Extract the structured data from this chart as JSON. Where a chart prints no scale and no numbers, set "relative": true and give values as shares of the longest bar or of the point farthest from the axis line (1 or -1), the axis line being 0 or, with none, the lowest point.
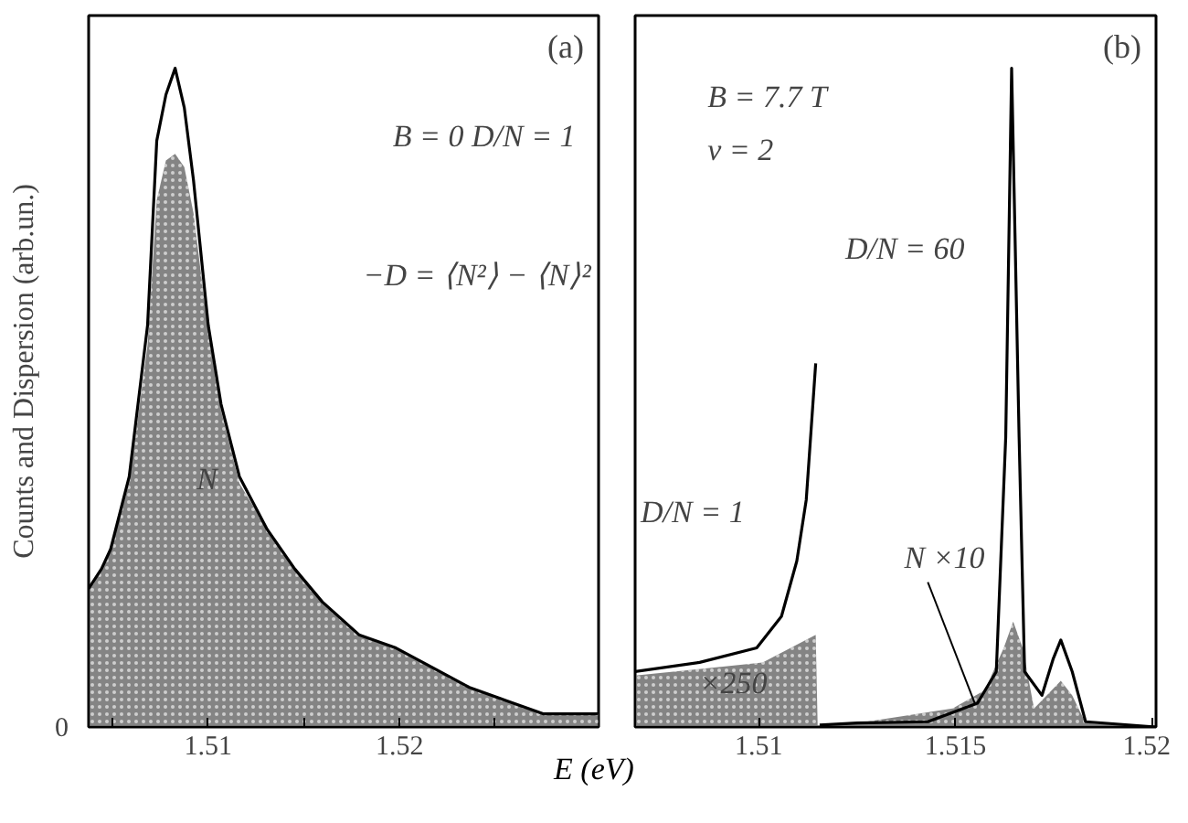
{
  "chart_data": [
    {
      "type": "area",
      "title": "(a)",
      "ylabel": "Counts and Dispersion (arb.un.)",
      "xlabel": "E (eV)",
      "relative": true,
      "xlim": [
        1.50375,
        1.5304
      ],
      "xticks": [
        {
          "value": 1.505,
          "label": null
        },
        1.51,
        {
          "value": 1.515,
          "label": null
        },
        1.52,
        {
          "value": 1.525,
          "label": null
        }
      ],
      "series": [
        {
          "color": "#6e6e6e",
          "x": [
            1.50375,
            1.50442,
            1.5049,
            1.50587,
            1.50683,
            1.50731,
            1.50779,
            1.50827,
            1.50875,
            1.50923,
            1.51,
            1.51067,
            1.51163,
            1.51308,
            1.51452,
            1.51596,
            1.51788,
            1.51981,
            1.52173,
            1.52365,
            1.52558,
            1.5275,
            1.53038
          ],
          "values": [
            0.21,
            0.24,
            0.27,
            0.37,
            0.58,
            0.8,
            0.86,
            0.87,
            0.85,
            0.78,
            0.6,
            0.48,
            0.37,
            0.3,
            0.24,
            0.19,
            0.14,
            0.12,
            0.09,
            0.06,
            0.04,
            0.02,
            0.02
          ]
        },
        {
          "type": "line",
          "color": "#000000",
          "x": [
            1.50375,
            1.50442,
            1.5049,
            1.50587,
            1.50683,
            1.50731,
            1.50779,
            1.50827,
            1.50875,
            1.50923,
            1.51,
            1.51067,
            1.51163,
            1.51308,
            1.51452,
            1.51596,
            1.51788,
            1.51981,
            1.52173,
            1.52365,
            1.52558,
            1.5275,
            1.53038
          ],
          "values": [
            0.21,
            0.24,
            0.27,
            0.38,
            0.61,
            0.89,
            0.96,
            1.0,
            0.94,
            0.83,
            0.61,
            0.49,
            0.38,
            0.3,
            0.24,
            0.19,
            0.14,
            0.12,
            0.09,
            0.06,
            0.04,
            0.02,
            0.02
          ]
        }
      ],
      "annotations": [
        "0",
        "B = 0   D/N = 1",
        "−D = ⟨N²⟩ − ⟨N⟩²",
        "N"
      ]
    },
    {
      "type": "area",
      "title": "(b)",
      "relative": true,
      "xlim": [
        1.50686,
        1.5201
      ],
      "xticks": [
        1.51,
        1.515,
        1.52
      ],
      "series": [
        {
          "color": "#6e6e6e",
          "x": [
            1.50686,
            1.5101,
            1.51145,
            1.5115,
            1.51251,
            1.51493,
            1.51575,
            1.51623,
            1.51647,
            1.51671,
            1.517,
            1.51768,
            1.51797,
            1.51831,
            1.5201
          ],
          "values": [
            0.078,
            0.098,
            0.14,
            0,
            0.006,
            0.028,
            0.056,
            0.12,
            0.16,
            0.12,
            0.028,
            0.07,
            0.048,
            0.006,
            0
          ]
        },
        {
          "type": "line",
          "color": "#000000",
          "x": [
            1.50686,
            1.5085,
            1.50995,
            1.51058,
            1.51097,
            1.51121,
            1.51145,
            1.5115,
            1.51155,
            1.51251,
            1.5143,
            1.51556,
            1.51604,
            1.51628,
            1.51643,
            1.51662,
            1.51676,
            1.5172,
            1.51749,
            1.51768,
            1.51797,
            1.51831,
            1.5201
          ],
          "values": [
            0.084,
            0.098,
            0.12,
            0.168,
            0.252,
            0.345,
            0.552,
            null,
            0.003,
            0.006,
            0.008,
            0.036,
            0.084,
            0.44,
            1.0,
            0.44,
            0.084,
            0.048,
            0.104,
            0.132,
            0.084,
            0.008,
            0
          ]
        }
      ],
      "annotations": [
        "B = 7.7 T",
        "ν = 2",
        "D/N = 60",
        "D/N = 1",
        "N ×10",
        "×250"
      ]
    }
  ]
}
